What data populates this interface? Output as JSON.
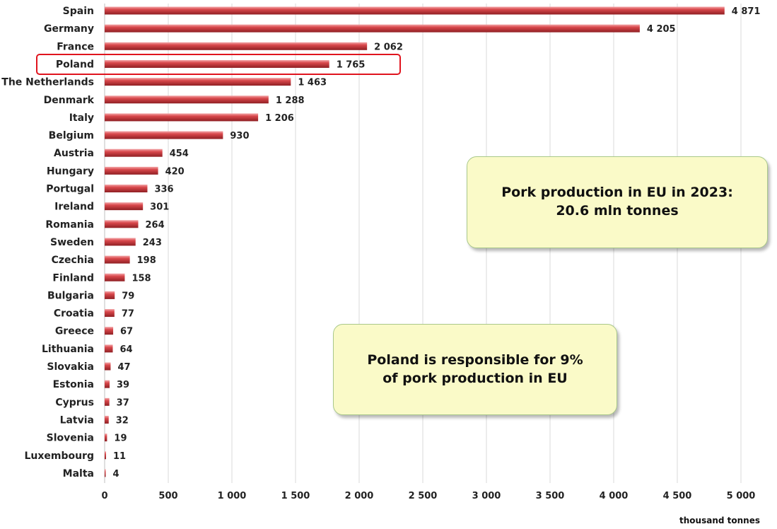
{
  "chart_data": {
    "type": "bar",
    "orientation": "horizontal",
    "title": "",
    "xlabel": "thousand tonnes",
    "ylabel": "",
    "xlim": [
      0,
      5000
    ],
    "x_ticks": [
      0,
      500,
      1000,
      1500,
      2000,
      2500,
      3000,
      3500,
      4000,
      4500,
      5000
    ],
    "x_tick_labels": [
      "0",
      "500",
      "1 000",
      "1 500",
      "2 000",
      "2 500",
      "3 000",
      "3 500",
      "4 000",
      "4 500",
      "5 000"
    ],
    "grid": true,
    "bar_color": "#c0393d",
    "categories": [
      "Spain",
      "Germany",
      "France",
      "Poland",
      "The Netherlands",
      "Denmark",
      "Italy",
      "Belgium",
      "Austria",
      "Hungary",
      "Portugal",
      "Ireland",
      "Romania",
      "Sweden",
      "Czechia",
      "Finland",
      "Bulgaria",
      "Croatia",
      "Greece",
      "Lithuania",
      "Slovakia",
      "Estonia",
      "Cyprus",
      "Latvia",
      "Slovenia",
      "Luxembourg",
      "Malta"
    ],
    "values": [
      4871,
      4205,
      2062,
      1765,
      1463,
      1288,
      1206,
      930,
      454,
      420,
      336,
      301,
      264,
      243,
      198,
      158,
      79,
      77,
      67,
      64,
      47,
      39,
      37,
      32,
      19,
      11,
      4
    ],
    "value_labels": [
      "4 871",
      "4 205",
      "2 062",
      "1 765",
      "1 463",
      "1 288",
      "1 206",
      "930",
      "454",
      "420",
      "336",
      "301",
      "264",
      "243",
      "198",
      "158",
      "79",
      "77",
      "67",
      "64",
      "47",
      "39",
      "37",
      "32",
      "19",
      "11",
      "4"
    ],
    "highlighted_category": "Poland",
    "highlight_color": "#e0141e",
    "annotations": [
      {
        "line1": "Pork production in EU in 2023:",
        "line2": "20.6 mln tonnes"
      },
      {
        "line1": "Poland is responsible for 9%",
        "line2": "of pork production in EU"
      }
    ]
  }
}
